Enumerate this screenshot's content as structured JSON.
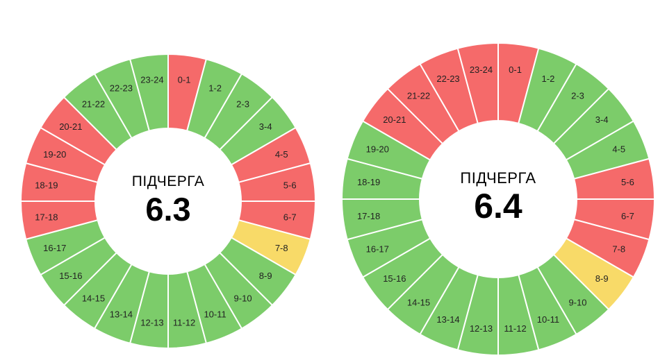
{
  "colors": {
    "on": "#7ccc6a",
    "off": "#f56a6a",
    "maybe": "#f8da68",
    "divider": "#ffffff"
  },
  "chart_data": [
    {
      "type": "pie",
      "title": "6.3",
      "label": "ПІДЧЕРГА",
      "categories": [
        "0-1",
        "1-2",
        "2-3",
        "3-4",
        "4-5",
        "5-6",
        "6-7",
        "7-8",
        "8-9",
        "9-10",
        "10-11",
        "11-12",
        "12-13",
        "13-14",
        "14-15",
        "15-16",
        "16-17",
        "17-18",
        "18-19",
        "19-20",
        "20-21",
        "21-22",
        "22-23",
        "23-24"
      ],
      "status": [
        "off",
        "on",
        "on",
        "on",
        "off",
        "off",
        "off",
        "maybe",
        "on",
        "on",
        "on",
        "on",
        "on",
        "on",
        "on",
        "on",
        "on",
        "off",
        "off",
        "off",
        "off",
        "on",
        "on",
        "on"
      ]
    },
    {
      "type": "pie",
      "title": "6.4",
      "label": "ПІДЧЕРГА",
      "categories": [
        "0-1",
        "1-2",
        "2-3",
        "3-4",
        "4-5",
        "5-6",
        "6-7",
        "7-8",
        "8-9",
        "9-10",
        "10-11",
        "11-12",
        "12-13",
        "13-14",
        "14-15",
        "15-16",
        "16-17",
        "17-18",
        "18-19",
        "19-20",
        "20-21",
        "21-22",
        "22-23",
        "23-24"
      ],
      "status": [
        "off",
        "on",
        "on",
        "on",
        "on",
        "off",
        "off",
        "off",
        "maybe",
        "on",
        "on",
        "on",
        "on",
        "on",
        "on",
        "on",
        "on",
        "on",
        "on",
        "on",
        "off",
        "off",
        "off",
        "off"
      ]
    }
  ]
}
